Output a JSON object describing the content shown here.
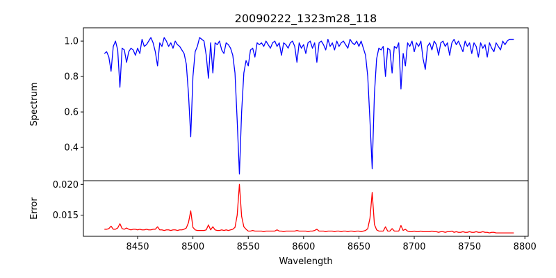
{
  "chart_data": [
    {
      "type": "line",
      "panel": "top",
      "title": "20090222_1323m28_118",
      "xlabel": "",
      "ylabel": "Spectrum",
      "xlim": [
        8401,
        8803
      ],
      "ylim": [
        0.212,
        1.075
      ],
      "yticks": [
        0.4,
        0.6,
        0.8,
        1.0
      ],
      "ytick_labels": [
        "0.4",
        "0.6",
        "0.8",
        "1.0"
      ],
      "color": "#0000ff",
      "x_start": 8420,
      "x_step": 2,
      "values": [
        0.93,
        0.94,
        0.91,
        0.83,
        0.97,
        1.0,
        0.95,
        0.74,
        0.96,
        0.95,
        0.88,
        0.94,
        0.96,
        0.95,
        0.92,
        0.96,
        0.93,
        1.01,
        0.97,
        0.98,
        1.0,
        1.02,
        0.99,
        0.94,
        0.86,
        0.99,
        0.97,
        1.02,
        1.0,
        0.97,
        0.99,
        0.96,
        1.0,
        0.98,
        0.97,
        0.95,
        0.93,
        0.87,
        0.7,
        0.46,
        0.8,
        0.94,
        0.97,
        1.02,
        1.01,
        1.0,
        0.92,
        0.79,
        0.99,
        0.82,
        0.99,
        0.98,
        1.0,
        0.95,
        0.93,
        0.99,
        0.98,
        0.96,
        0.92,
        0.82,
        0.55,
        0.25,
        0.6,
        0.82,
        0.89,
        0.86,
        0.95,
        0.96,
        0.91,
        0.99,
        0.98,
        0.99,
        0.97,
        1.0,
        0.98,
        0.96,
        0.99,
        1.0,
        0.97,
        0.99,
        0.92,
        0.99,
        0.98,
        0.96,
        0.99,
        1.0,
        0.97,
        0.88,
        0.99,
        0.96,
        0.98,
        0.93,
        0.99,
        1.0,
        0.96,
        0.99,
        0.88,
        0.99,
        1.0,
        0.98,
        0.95,
        1.01,
        0.97,
        0.99,
        0.95,
        1.0,
        0.97,
        0.99,
        1.0,
        0.98,
        0.96,
        1.01,
        0.99,
        0.98,
        1.0,
        0.97,
        1.0,
        0.96,
        0.92,
        0.8,
        0.55,
        0.28,
        0.7,
        0.9,
        0.96,
        0.95,
        0.97,
        0.8,
        0.96,
        0.95,
        0.82,
        0.97,
        0.96,
        0.99,
        0.73,
        0.93,
        0.86,
        0.99,
        0.97,
        1.0,
        0.94,
        0.99,
        0.97,
        1.0,
        0.9,
        0.84,
        0.97,
        0.99,
        0.95,
        1.0,
        0.98,
        0.92,
        0.99,
        1.0,
        0.97,
        0.99,
        0.92,
        0.99,
        1.01,
        0.98,
        1.0,
        0.97,
        0.94,
        1.0,
        0.97,
        0.99,
        0.93,
        0.99,
        0.97,
        0.91,
        0.99,
        0.96,
        0.98,
        0.91,
        0.99,
        0.96,
        0.94,
        0.99,
        0.97,
        0.95,
        1.0,
        0.98,
        1.0,
        1.01,
        1.01,
        1.01
      ]
    },
    {
      "type": "line",
      "panel": "bottom",
      "title": "",
      "xlabel": "Wavelength",
      "ylabel": "Error",
      "xlim": [
        8401,
        8803
      ],
      "ylim": [
        0.01155,
        0.0206
      ],
      "xticks": [
        8450,
        8500,
        8550,
        8600,
        8650,
        8700,
        8750,
        8800
      ],
      "xtick_labels": [
        "8450",
        "8500",
        "8550",
        "8600",
        "8650",
        "8700",
        "8750",
        "8800"
      ],
      "yticks": [
        0.015,
        0.02
      ],
      "ytick_labels": [
        "0.015",
        "0.020"
      ],
      "color": "#ff0000",
      "x_start": 8420,
      "x_step": 2,
      "values": [
        0.0127,
        0.0127,
        0.0128,
        0.0132,
        0.0127,
        0.0127,
        0.0129,
        0.0136,
        0.0128,
        0.0127,
        0.0129,
        0.0127,
        0.0126,
        0.0127,
        0.0127,
        0.0126,
        0.0127,
        0.0126,
        0.0126,
        0.0127,
        0.0126,
        0.0126,
        0.0127,
        0.0127,
        0.0131,
        0.0126,
        0.0126,
        0.0125,
        0.0126,
        0.0126,
        0.0125,
        0.0126,
        0.0126,
        0.0125,
        0.0126,
        0.0126,
        0.0127,
        0.0129,
        0.0138,
        0.0157,
        0.013,
        0.0126,
        0.0125,
        0.0125,
        0.0125,
        0.0125,
        0.0126,
        0.0134,
        0.0126,
        0.0131,
        0.0126,
        0.0125,
        0.0125,
        0.0126,
        0.0125,
        0.0126,
        0.0125,
        0.0126,
        0.0127,
        0.013,
        0.015,
        0.02,
        0.0148,
        0.0131,
        0.0127,
        0.0124,
        0.0124,
        0.0125,
        0.0124,
        0.0124,
        0.0124,
        0.0124,
        0.0123,
        0.0124,
        0.0124,
        0.0124,
        0.0124,
        0.0124,
        0.0126,
        0.0124,
        0.0124,
        0.0123,
        0.0124,
        0.0124,
        0.0124,
        0.0124,
        0.0124,
        0.0125,
        0.0124,
        0.0124,
        0.0124,
        0.0124,
        0.0123,
        0.0124,
        0.0124,
        0.0125,
        0.0127,
        0.0124,
        0.0124,
        0.0124,
        0.0123,
        0.0124,
        0.0124,
        0.0124,
        0.0123,
        0.0124,
        0.0124,
        0.0123,
        0.0124,
        0.0124,
        0.0123,
        0.0124,
        0.0124,
        0.0123,
        0.0124,
        0.0124,
        0.0123,
        0.0124,
        0.0125,
        0.0128,
        0.0145,
        0.0187,
        0.0135,
        0.0126,
        0.0124,
        0.0124,
        0.0124,
        0.0131,
        0.0124,
        0.0124,
        0.0128,
        0.0124,
        0.0124,
        0.0124,
        0.0133,
        0.0125,
        0.0127,
        0.0124,
        0.0123,
        0.0123,
        0.0124,
        0.0123,
        0.0123,
        0.0124,
        0.0123,
        0.0123,
        0.0123,
        0.0123,
        0.0124,
        0.0123,
        0.0123,
        0.0122,
        0.0123,
        0.0123,
        0.0122,
        0.0123,
        0.0123,
        0.0124,
        0.0122,
        0.0123,
        0.0122,
        0.0122,
        0.0123,
        0.0122,
        0.0122,
        0.0123,
        0.0122,
        0.0122,
        0.0123,
        0.0122,
        0.0122,
        0.0123,
        0.0122,
        0.0122,
        0.0121,
        0.0122,
        0.0122,
        0.0121,
        0.0121,
        0.0121,
        0.0121,
        0.0121,
        0.0121,
        0.0121,
        0.0121,
        0.0121
      ]
    }
  ]
}
